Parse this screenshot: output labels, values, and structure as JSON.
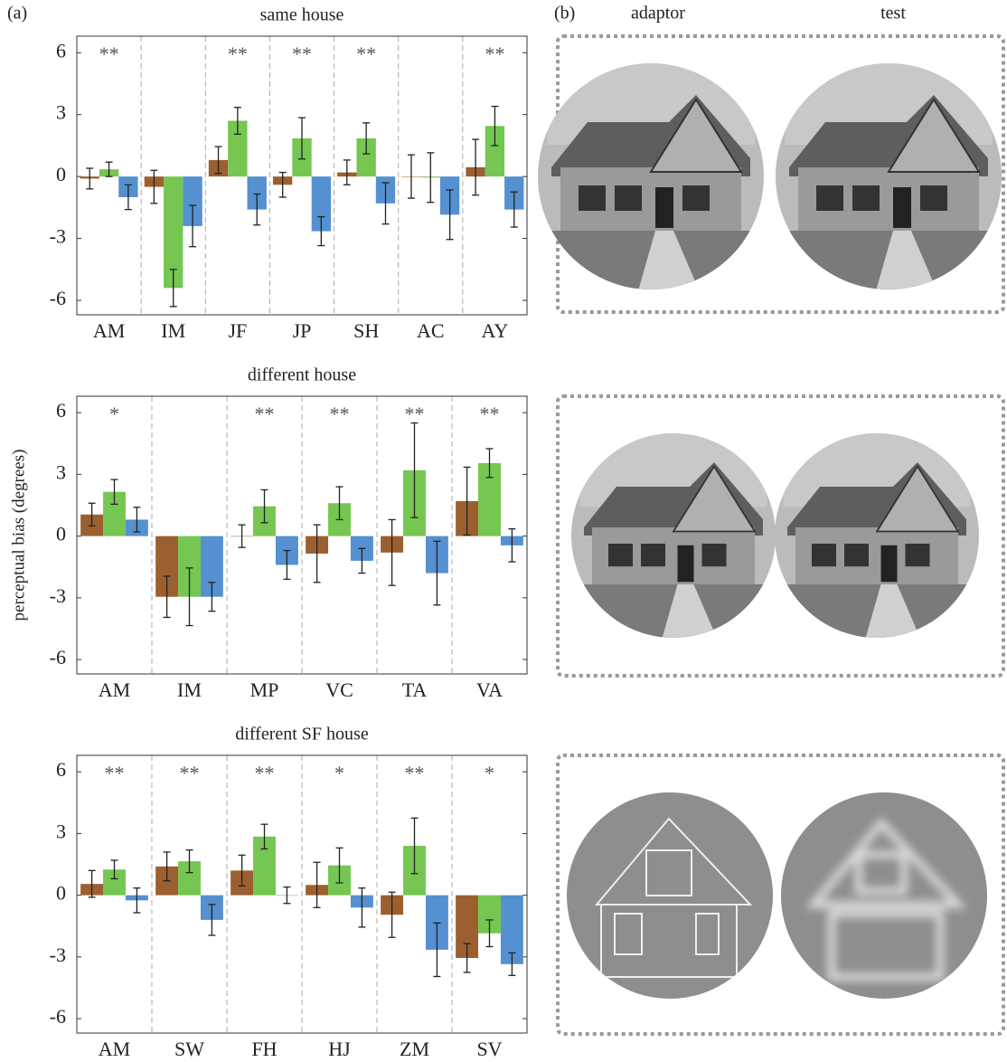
{
  "panel_labels": {
    "a": "(a)",
    "b": "(b)"
  },
  "column_labels": [
    "adaptor",
    "test"
  ],
  "chart_data": [
    {
      "type": "bar",
      "title": "same house",
      "categories": [
        "AM",
        "IM",
        "JF",
        "JP",
        "SH",
        "AC",
        "AY"
      ],
      "annotations": [
        "**",
        null,
        "**",
        "**",
        "**",
        null,
        "**"
      ],
      "series": [
        {
          "color": "#9c6030",
          "values": [
            -0.1,
            -0.5,
            0.8,
            -0.4,
            0.2,
            0.0,
            0.45
          ],
          "errors": [
            0.5,
            0.8,
            0.65,
            0.6,
            0.6,
            1.05,
            1.35
          ]
        },
        {
          "color": "#76c652",
          "values": [
            0.35,
            -5.4,
            2.7,
            1.85,
            1.85,
            -0.05,
            2.45
          ],
          "errors": [
            0.35,
            0.9,
            0.65,
            1.0,
            0.75,
            1.2,
            0.95
          ]
        },
        {
          "color": "#5590d0",
          "values": [
            -1.0,
            -2.4,
            -1.6,
            -2.65,
            -1.3,
            -1.85,
            -1.6
          ],
          "errors": [
            0.6,
            1.0,
            0.75,
            0.7,
            1.0,
            1.2,
            0.85
          ]
        }
      ],
      "ylim": [
        -6.7,
        6.8
      ],
      "yticks": [
        -6,
        -3,
        0,
        3,
        6
      ]
    },
    {
      "type": "bar",
      "title": "different house",
      "ylabel": "perceptual bias (degrees)",
      "categories": [
        "AM",
        "IM",
        "MP",
        "VC",
        "TA",
        "VA"
      ],
      "annotations": [
        "*",
        null,
        "**",
        "**",
        "**",
        "**"
      ],
      "series": [
        {
          "color": "#9c6030",
          "values": [
            1.05,
            -2.95,
            0.0,
            -0.85,
            -0.8,
            1.7
          ],
          "errors": [
            0.55,
            1.0,
            0.55,
            1.4,
            1.6,
            1.65
          ]
        },
        {
          "color": "#76c652",
          "values": [
            2.15,
            -2.95,
            1.45,
            1.6,
            3.2,
            3.55
          ],
          "errors": [
            0.6,
            1.4,
            0.8,
            0.8,
            2.3,
            0.7
          ]
        },
        {
          "color": "#5590d0",
          "values": [
            0.8,
            -2.95,
            -1.4,
            -1.2,
            -1.8,
            -0.45
          ],
          "errors": [
            0.6,
            0.7,
            0.7,
            0.6,
            1.55,
            0.8
          ]
        }
      ],
      "ylim": [
        -6.7,
        6.8
      ],
      "yticks": [
        -6,
        -3,
        0,
        3,
        6
      ]
    },
    {
      "type": "bar",
      "title": "different SF house",
      "categories": [
        "AM",
        "SW",
        "FH",
        "HJ",
        "ZM",
        "SV"
      ],
      "annotations": [
        "**",
        "**",
        "**",
        "*",
        "**",
        "*"
      ],
      "series": [
        {
          "color": "#9c6030",
          "values": [
            0.55,
            1.4,
            1.2,
            0.5,
            -0.95,
            -3.05
          ],
          "errors": [
            0.65,
            0.7,
            0.75,
            1.1,
            1.1,
            0.7
          ]
        },
        {
          "color": "#76c652",
          "values": [
            1.25,
            1.65,
            2.85,
            1.45,
            2.4,
            -1.85
          ],
          "errors": [
            0.45,
            0.55,
            0.6,
            0.85,
            1.35,
            0.65
          ]
        },
        {
          "color": "#5590d0",
          "values": [
            -0.25,
            -1.2,
            0.0,
            -0.6,
            -2.65,
            -3.35
          ],
          "errors": [
            0.6,
            0.75,
            0.4,
            0.95,
            1.3,
            0.55
          ]
        }
      ],
      "ylim": [
        -6.7,
        6.8
      ],
      "yticks": [
        -6,
        -3,
        0,
        3,
        6
      ]
    }
  ]
}
